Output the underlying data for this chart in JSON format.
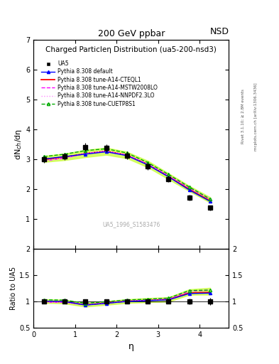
{
  "title_top": "200 GeV ppbar",
  "title_right": "NSD",
  "plot_title": "Charged Particleη Distribution",
  "plot_subtitle": "(ua5-200-nsd3)",
  "ref_label": "UA5_1996_S1583476",
  "ylabel_main": "dN$_{ch}$/dη",
  "ylabel_ratio": "Ratio to UA5",
  "xlabel": "η",
  "right_label_top": "Rivet 3.1.10; ≥ 2.8M events",
  "right_label_bottom": "mcplots.cern.ch [arXiv:1306.3436]",
  "ylim_main": [
    0,
    7
  ],
  "ylim_ratio": [
    0.5,
    2
  ],
  "xlim": [
    0,
    4.7
  ],
  "ua5_eta": [
    0.25,
    0.75,
    1.25,
    1.75,
    2.25,
    2.75,
    3.25,
    3.75,
    4.25
  ],
  "ua5_y": [
    3.0,
    3.1,
    3.42,
    3.38,
    3.13,
    2.78,
    2.35,
    1.72,
    1.38
  ],
  "ua5_yerr": [
    0.12,
    0.12,
    0.14,
    0.14,
    0.13,
    0.12,
    0.11,
    0.1,
    0.09
  ],
  "pythia_eta": [
    0.25,
    0.75,
    1.25,
    1.75,
    2.25,
    2.75,
    3.25,
    3.75,
    4.25
  ],
  "default_y": [
    3.02,
    3.1,
    3.18,
    3.26,
    3.13,
    2.82,
    2.42,
    1.98,
    1.6
  ],
  "cteql1_y": [
    3.0,
    3.08,
    3.2,
    3.28,
    3.15,
    2.84,
    2.44,
    2.0,
    1.62
  ],
  "mstw_y": [
    2.95,
    3.05,
    3.2,
    3.28,
    3.15,
    2.85,
    2.46,
    2.05,
    1.68
  ],
  "nnpdf_y": [
    2.96,
    3.06,
    3.21,
    3.29,
    3.16,
    2.86,
    2.47,
    2.06,
    1.69
  ],
  "cuetp8s1_y": [
    3.1,
    3.18,
    3.3,
    3.36,
    3.22,
    2.9,
    2.5,
    2.08,
    1.68
  ],
  "band_y_low": [
    2.92,
    2.98,
    3.08,
    3.16,
    3.04,
    2.74,
    2.34,
    1.94,
    1.56
  ],
  "band_y_high": [
    3.12,
    3.2,
    3.32,
    3.4,
    3.26,
    2.96,
    2.54,
    2.12,
    1.74
  ],
  "color_default": "#0000ff",
  "color_cteql1": "#ff0000",
  "color_mstw": "#ff00ff",
  "color_nnpdf": "#ff88ff",
  "color_cuetp8s1": "#00aa00",
  "color_band": "#ccff44",
  "color_ua5": "#000000"
}
